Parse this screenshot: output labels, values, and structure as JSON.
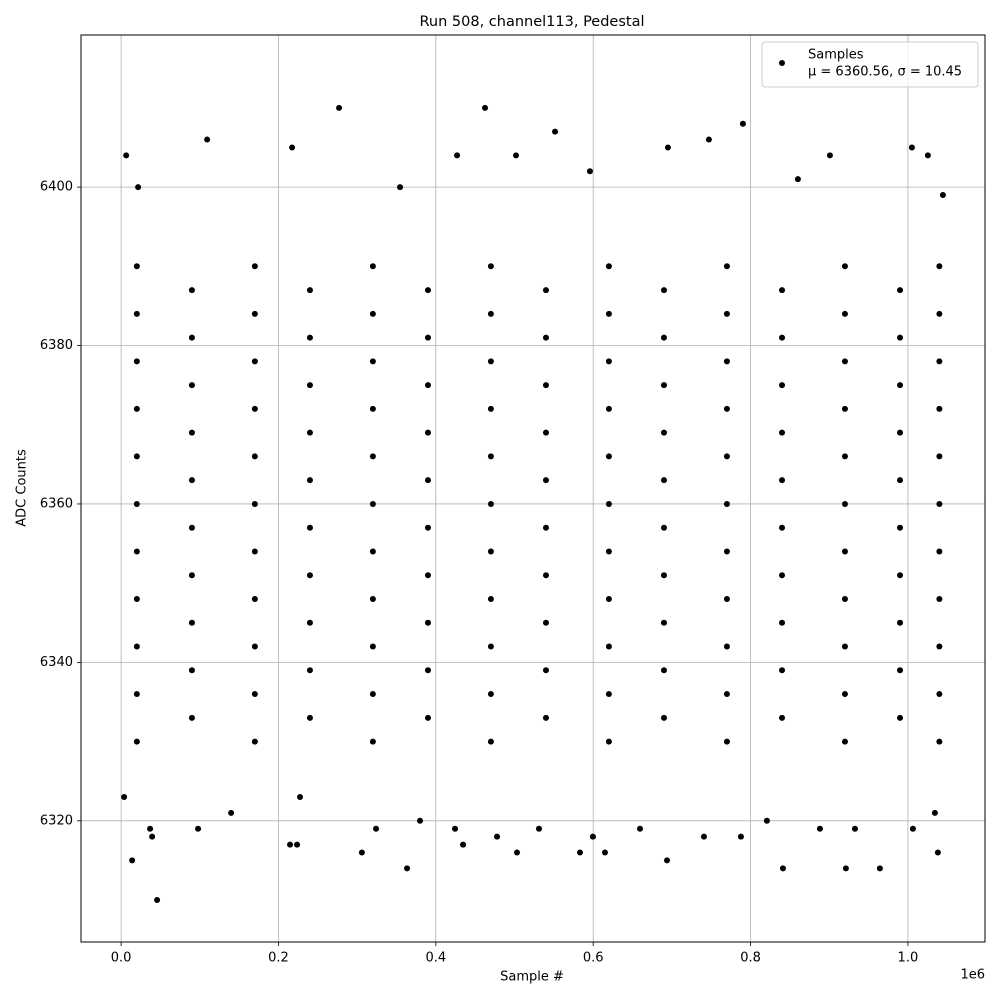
{
  "chart_data": {
    "type": "scatter",
    "title": "Run 508, channel113, Pedestal",
    "x_label": "Sample #",
    "y_label": "ADC Counts",
    "x_offset_label": "1e6",
    "xlim": [
      -51000,
      1098000
    ],
    "ylim": [
      6304.7,
      6419.2
    ],
    "xticks": [
      {
        "value": 0,
        "label": "0.0"
      },
      {
        "value": 200000,
        "label": "0.2"
      },
      {
        "value": 400000,
        "label": "0.4"
      },
      {
        "value": 600000,
        "label": "0.6"
      },
      {
        "value": 800000,
        "label": "0.8"
      },
      {
        "value": 1000000,
        "label": "1.0"
      }
    ],
    "yticks": [
      6320,
      6340,
      6360,
      6380,
      6400
    ],
    "grid": true,
    "legend": "upper right",
    "annotation": "μ = 6360.56, σ = 10.45",
    "series": [
      {
        "name": "Samples",
        "color": "#000000",
        "x": [
          20000,
          170000,
          320000,
          470000,
          620000,
          770000,
          920000,
          1040000,
          90000,
          240000,
          390000,
          540000,
          690000,
          840000,
          990000,
          20000,
          170000,
          320000,
          470000,
          620000,
          770000,
          920000,
          1040000,
          90000,
          240000,
          390000,
          540000,
          690000,
          840000,
          990000,
          20000,
          170000,
          320000,
          470000,
          620000,
          770000,
          920000,
          1040000,
          90000,
          240000,
          390000,
          540000,
          690000,
          840000,
          990000,
          20000,
          170000,
          320000,
          470000,
          620000,
          770000,
          920000,
          1040000,
          90000,
          240000,
          390000,
          540000,
          690000,
          840000,
          990000,
          20000,
          170000,
          320000,
          470000,
          620000,
          770000,
          920000,
          1040000,
          90000,
          240000,
          390000,
          540000,
          690000,
          840000,
          990000,
          20000,
          170000,
          320000,
          470000,
          620000,
          770000,
          920000,
          1040000,
          90000,
          240000,
          390000,
          540000,
          690000,
          840000,
          990000,
          20000,
          170000,
          320000,
          470000,
          620000,
          770000,
          920000,
          1040000,
          90000,
          240000,
          390000,
          540000,
          690000,
          840000,
          990000,
          20000,
          170000,
          320000,
          470000,
          620000,
          770000,
          920000,
          1040000,
          90000,
          240000,
          390000,
          540000,
          690000,
          840000,
          990000,
          20000,
          170000,
          320000,
          470000,
          620000,
          770000,
          920000,
          1040000,
          90000,
          240000,
          390000,
          540000,
          690000,
          840000,
          990000,
          20000,
          170000,
          320000,
          470000,
          620000,
          770000,
          920000,
          1040000,
          90000,
          240000,
          390000,
          540000,
          690000,
          840000,
          990000,
          20000,
          170000,
          320000,
          470000,
          620000,
          770000,
          920000,
          1040000,
          45700,
          14000,
          214700,
          223600,
          306000,
          363400,
          503200,
          615000,
          693800,
          841200,
          921200,
          964400,
          1038100,
          277000,
          462500,
          790300,
          551500,
          109300,
          6400,
          217300,
          1005100,
          1025400,
          900900,
          427000,
          501900,
          747100,
          695000,
          227400,
          3800,
          36800,
          39400,
          97800,
          139800,
          324000,
          379900,
          424400,
          434600,
          477800,
          531100,
          583200,
          599700,
          659500,
          740800,
          787800,
          820800,
          888200,
          932700,
          1006400,
          1034300,
          21600,
          354500,
          595900,
          860200,
          1044500
        ],
        "values": [
          6330,
          6330,
          6330,
          6330,
          6330,
          6330,
          6330,
          6330,
          6333,
          6333,
          6333,
          6333,
          6333,
          6333,
          6333,
          6336,
          6336,
          6336,
          6336,
          6336,
          6336,
          6336,
          6336,
          6339,
          6339,
          6339,
          6339,
          6339,
          6339,
          6339,
          6342,
          6342,
          6342,
          6342,
          6342,
          6342,
          6342,
          6342,
          6345,
          6345,
          6345,
          6345,
          6345,
          6345,
          6345,
          6348,
          6348,
          6348,
          6348,
          6348,
          6348,
          6348,
          6348,
          6351,
          6351,
          6351,
          6351,
          6351,
          6351,
          6351,
          6354,
          6354,
          6354,
          6354,
          6354,
          6354,
          6354,
          6354,
          6357,
          6357,
          6357,
          6357,
          6357,
          6357,
          6357,
          6360,
          6360,
          6360,
          6360,
          6360,
          6360,
          6360,
          6360,
          6363,
          6363,
          6363,
          6363,
          6363,
          6363,
          6363,
          6366,
          6366,
          6366,
          6366,
          6366,
          6366,
          6366,
          6366,
          6369,
          6369,
          6369,
          6369,
          6369,
          6369,
          6369,
          6372,
          6372,
          6372,
          6372,
          6372,
          6372,
          6372,
          6372,
          6375,
          6375,
          6375,
          6375,
          6375,
          6375,
          6375,
          6378,
          6378,
          6378,
          6378,
          6378,
          6378,
          6378,
          6378,
          6381,
          6381,
          6381,
          6381,
          6381,
          6381,
          6381,
          6384,
          6384,
          6384,
          6384,
          6384,
          6384,
          6384,
          6384,
          6387,
          6387,
          6387,
          6387,
          6387,
          6387,
          6387,
          6390,
          6390,
          6390,
          6390,
          6390,
          6390,
          6390,
          6390,
          6310,
          6315,
          6317,
          6317,
          6316,
          6314,
          6316,
          6316,
          6315,
          6314,
          6314,
          6314,
          6316,
          6410,
          6410,
          6408,
          6407,
          6406,
          6404,
          6405,
          6405,
          6404,
          6404,
          6404,
          6404,
          6406,
          6405,
          6323,
          6323,
          6319,
          6318,
          6319,
          6321,
          6319,
          6320,
          6319,
          6317,
          6318,
          6319,
          6316,
          6318,
          6319,
          6318,
          6318,
          6320,
          6319,
          6319,
          6319,
          6321,
          6400,
          6400,
          6402,
          6401,
          6399
        ]
      }
    ]
  }
}
